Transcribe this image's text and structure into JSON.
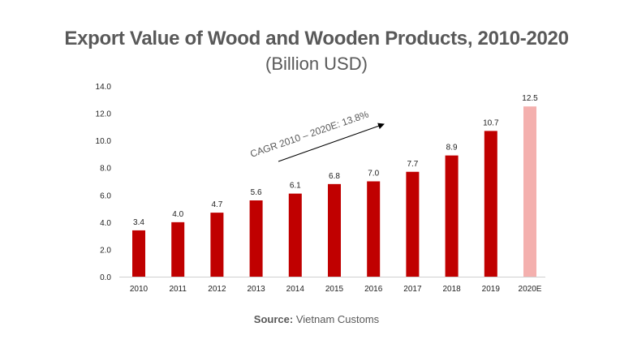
{
  "chart_data": {
    "type": "bar",
    "title": "Export Value of Wood and Wooden Products, 2010-2020",
    "subtitle": "(Billion USD)",
    "categories": [
      "2010",
      "2011",
      "2012",
      "2013",
      "2014",
      "2015",
      "2016",
      "2017",
      "2018",
      "2019",
      "2020E"
    ],
    "values": [
      3.4,
      4.0,
      4.7,
      5.6,
      6.1,
      6.8,
      7.0,
      7.7,
      8.9,
      10.7,
      12.5
    ],
    "value_labels": [
      "3.4",
      "4.0",
      "4.7",
      "5.6",
      "6.1",
      "6.8",
      "7.0",
      "7.7",
      "8.9",
      "10.7",
      "12.5"
    ],
    "ylim": [
      0,
      14
    ],
    "yticks": [
      "0.0",
      "2.0",
      "4.0",
      "6.0",
      "8.0",
      "10.0",
      "12.0",
      "14.0"
    ],
    "grid": false,
    "colors": {
      "actual": "#c00000",
      "estimate": "#f4b0ae"
    },
    "annotation": "CAGR 2010 – 2020E: 13.8%",
    "source_label": "Source:",
    "source_text": "Vietnam Customs"
  }
}
